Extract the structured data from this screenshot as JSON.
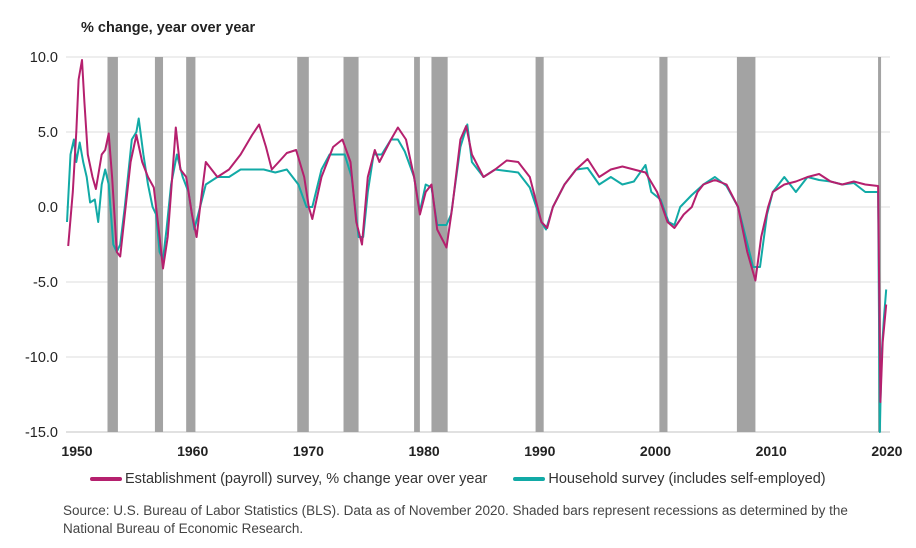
{
  "chart_data": {
    "type": "line",
    "ylabel": "% change, year over year",
    "ylim": [
      -15,
      10
    ],
    "yticks": [
      "10.0",
      "5.0",
      "0.0",
      "-5.0",
      "-10.0",
      "-15.0"
    ],
    "xticks": [
      "1950",
      "1960",
      "1970",
      "1980",
      "1990",
      "2000",
      "2010",
      "2020"
    ],
    "grid": "horizontal",
    "legend_placement": "bottom",
    "recessions": [
      [
        1953.5,
        1954.4
      ],
      [
        1957.6,
        1958.3
      ],
      [
        1960.3,
        1961.1
      ],
      [
        1969.9,
        1970.9
      ],
      [
        1973.9,
        1975.2
      ],
      [
        1980.0,
        1980.5
      ],
      [
        1981.5,
        1982.9
      ],
      [
        1990.5,
        1991.2
      ],
      [
        2001.2,
        2001.9
      ],
      [
        2007.9,
        2009.5
      ],
      [
        2020.1,
        2020.3
      ]
    ],
    "series": [
      {
        "name": "Establishment (payroll) survey, % change year over year",
        "color": "#b5206e",
        "points": [
          [
            1950.1,
            -2.6
          ],
          [
            1950.5,
            1
          ],
          [
            1950.8,
            5
          ],
          [
            1951.0,
            8.5
          ],
          [
            1951.3,
            9.8
          ],
          [
            1951.5,
            7
          ],
          [
            1951.8,
            3.5
          ],
          [
            1952.2,
            2
          ],
          [
            1952.5,
            1.2
          ],
          [
            1953.0,
            3.5
          ],
          [
            1953.3,
            3.8
          ],
          [
            1953.6,
            4.9
          ],
          [
            1953.9,
            2
          ],
          [
            1954.3,
            -3
          ],
          [
            1954.6,
            -3.3
          ],
          [
            1955.0,
            -0.5
          ],
          [
            1955.5,
            3
          ],
          [
            1956.0,
            4.8
          ],
          [
            1956.5,
            3
          ],
          [
            1957.0,
            2
          ],
          [
            1957.5,
            1.3
          ],
          [
            1958.0,
            -2
          ],
          [
            1958.3,
            -4.1
          ],
          [
            1958.7,
            -2
          ],
          [
            1959.0,
            1
          ],
          [
            1959.4,
            5.3
          ],
          [
            1959.8,
            2.5
          ],
          [
            1960.3,
            2
          ],
          [
            1960.8,
            -0.5
          ],
          [
            1961.2,
            -2
          ],
          [
            1961.5,
            0
          ],
          [
            1962.0,
            3
          ],
          [
            1962.5,
            2.5
          ],
          [
            1963,
            2
          ],
          [
            1964,
            2.5
          ],
          [
            1965,
            3.5
          ],
          [
            1966,
            4.8
          ],
          [
            1966.6,
            5.5
          ],
          [
            1967.2,
            4
          ],
          [
            1967.7,
            2.5
          ],
          [
            1968.3,
            3
          ],
          [
            1969,
            3.6
          ],
          [
            1969.8,
            3.8
          ],
          [
            1970.5,
            2
          ],
          [
            1970.9,
            0
          ],
          [
            1971.2,
            -0.8
          ],
          [
            1972,
            2
          ],
          [
            1973,
            4
          ],
          [
            1973.8,
            4.5
          ],
          [
            1974.5,
            3
          ],
          [
            1975.0,
            -1
          ],
          [
            1975.5,
            -2.5
          ],
          [
            1976,
            2
          ],
          [
            1976.6,
            3.8
          ],
          [
            1977,
            3
          ],
          [
            1978,
            4.5
          ],
          [
            1978.6,
            5.3
          ],
          [
            1979.3,
            4.5
          ],
          [
            1980,
            2
          ],
          [
            1980.5,
            -0.5
          ],
          [
            1981,
            1
          ],
          [
            1981.5,
            1.5
          ],
          [
            1982,
            -1.5
          ],
          [
            1982.8,
            -2.7
          ],
          [
            1983.3,
            0
          ],
          [
            1984,
            4.5
          ],
          [
            1984.5,
            5.4
          ],
          [
            1985,
            3.5
          ],
          [
            1986,
            2
          ],
          [
            1987,
            2.5
          ],
          [
            1988,
            3.1
          ],
          [
            1989,
            3
          ],
          [
            1990,
            2
          ],
          [
            1991,
            -1
          ],
          [
            1991.5,
            -1.4
          ],
          [
            1992,
            0
          ],
          [
            1993,
            1.5
          ],
          [
            1994,
            2.5
          ],
          [
            1995,
            3.2
          ],
          [
            1996,
            2
          ],
          [
            1997,
            2.5
          ],
          [
            1998,
            2.7
          ],
          [
            1999,
            2.5
          ],
          [
            2000,
            2.3
          ],
          [
            2001,
            1
          ],
          [
            2001.9,
            -1
          ],
          [
            2002.5,
            -1.4
          ],
          [
            2003.3,
            -0.5
          ],
          [
            2004,
            0
          ],
          [
            2004.5,
            1
          ],
          [
            2005,
            1.5
          ],
          [
            2006,
            1.8
          ],
          [
            2007,
            1.5
          ],
          [
            2008,
            0
          ],
          [
            2008.8,
            -3
          ],
          [
            2009.5,
            -4.9
          ],
          [
            2010,
            -2
          ],
          [
            2010.6,
            0
          ],
          [
            2011,
            1
          ],
          [
            2012,
            1.5
          ],
          [
            2013,
            1.7
          ],
          [
            2014,
            2
          ],
          [
            2015,
            2.2
          ],
          [
            2016,
            1.7
          ],
          [
            2017,
            1.5
          ],
          [
            2018,
            1.7
          ],
          [
            2019,
            1.5
          ],
          [
            2020.1,
            1.4
          ],
          [
            2020.3,
            -13
          ],
          [
            2020.5,
            -9
          ],
          [
            2020.8,
            -6.5
          ]
        ]
      },
      {
        "name": "Household survey (includes self-employed)",
        "color": "#12aaa6",
        "points": [
          [
            1950,
            -1
          ],
          [
            1950.3,
            3.5
          ],
          [
            1950.6,
            4.5
          ],
          [
            1950.8,
            3
          ],
          [
            1951.1,
            4.3
          ],
          [
            1951.4,
            3
          ],
          [
            1951.7,
            2
          ],
          [
            1952,
            0.3
          ],
          [
            1952.4,
            0.5
          ],
          [
            1952.7,
            -1
          ],
          [
            1953,
            1.5
          ],
          [
            1953.3,
            2.5
          ],
          [
            1953.6,
            1.5
          ],
          [
            1954,
            -2.5
          ],
          [
            1954.3,
            -3
          ],
          [
            1954.6,
            -2.5
          ],
          [
            1955,
            0
          ],
          [
            1955.6,
            4.5
          ],
          [
            1956,
            5
          ],
          [
            1956.2,
            5.9
          ],
          [
            1956.6,
            3.5
          ],
          [
            1957,
            1.5
          ],
          [
            1957.4,
            0
          ],
          [
            1957.7,
            -0.5
          ],
          [
            1958,
            -3
          ],
          [
            1958.3,
            -3.5
          ],
          [
            1958.6,
            -1.5
          ],
          [
            1959,
            1.5
          ],
          [
            1959.5,
            3.5
          ],
          [
            1960,
            2
          ],
          [
            1960.5,
            1
          ],
          [
            1961,
            -1.5
          ],
          [
            1961.5,
            0
          ],
          [
            1962,
            1.5
          ],
          [
            1963,
            2
          ],
          [
            1964,
            2
          ],
          [
            1965,
            2.5
          ],
          [
            1966,
            2.5
          ],
          [
            1967,
            2.5
          ],
          [
            1968,
            2.3
          ],
          [
            1969,
            2.5
          ],
          [
            1970,
            1.5
          ],
          [
            1970.7,
            0
          ],
          [
            1971.2,
            0
          ],
          [
            1972,
            2.5
          ],
          [
            1972.7,
            3.5
          ],
          [
            1973.4,
            3.5
          ],
          [
            1974,
            3.5
          ],
          [
            1974.6,
            2
          ],
          [
            1975.2,
            -2
          ],
          [
            1975.6,
            -2
          ],
          [
            1976,
            1
          ],
          [
            1976.5,
            3.5
          ],
          [
            1977.2,
            3.5
          ],
          [
            1978,
            4.5
          ],
          [
            1978.6,
            4.5
          ],
          [
            1979.2,
            3.7
          ],
          [
            1980,
            2
          ],
          [
            1980.5,
            -0.3
          ],
          [
            1981,
            1.5
          ],
          [
            1981.5,
            1.3
          ],
          [
            1982,
            -1.2
          ],
          [
            1982.8,
            -1.2
          ],
          [
            1983.2,
            -0.5
          ],
          [
            1984,
            4
          ],
          [
            1984.6,
            5.5
          ],
          [
            1985,
            3
          ],
          [
            1986,
            2
          ],
          [
            1987,
            2.5
          ],
          [
            1988,
            2.4
          ],
          [
            1989,
            2.3
          ],
          [
            1990,
            1.3
          ],
          [
            1991,
            -1
          ],
          [
            1991.4,
            -1.5
          ],
          [
            1992,
            0
          ],
          [
            1993,
            1.5
          ],
          [
            1994,
            2.5
          ],
          [
            1995,
            2.6
          ],
          [
            1996,
            1.5
          ],
          [
            1997,
            2
          ],
          [
            1998,
            1.5
          ],
          [
            1999,
            1.7
          ],
          [
            2000,
            2.8
          ],
          [
            2000.5,
            1
          ],
          [
            2001.3,
            0.5
          ],
          [
            2002,
            -1
          ],
          [
            2002.5,
            -1.2
          ],
          [
            2003,
            0
          ],
          [
            2004,
            0.8
          ],
          [
            2005,
            1.5
          ],
          [
            2006,
            2
          ],
          [
            2007,
            1.4
          ],
          [
            2008,
            0
          ],
          [
            2008.5,
            -1.5
          ],
          [
            2009.3,
            -4
          ],
          [
            2009.9,
            -4
          ],
          [
            2010.5,
            -0.5
          ],
          [
            2011,
            1
          ],
          [
            2012,
            2
          ],
          [
            2013,
            1
          ],
          [
            2014,
            2
          ],
          [
            2015,
            1.8
          ],
          [
            2016,
            1.7
          ],
          [
            2017,
            1.5
          ],
          [
            2018,
            1.6
          ],
          [
            2019,
            1
          ],
          [
            2020.1,
            1
          ],
          [
            2020.25,
            -15
          ],
          [
            2020.4,
            -10
          ],
          [
            2020.6,
            -7.5
          ],
          [
            2020.8,
            -5.5
          ]
        ]
      }
    ]
  },
  "legend": {
    "establishment": "Establishment (payroll) survey, % change year over year",
    "household": "Household survey (includes self-employed)"
  },
  "source": "Source: U.S. Bureau of Labor Statistics (BLS). Data as of November 2020. Shaded bars represent recessions as determined by the National Bureau of Economic Research."
}
